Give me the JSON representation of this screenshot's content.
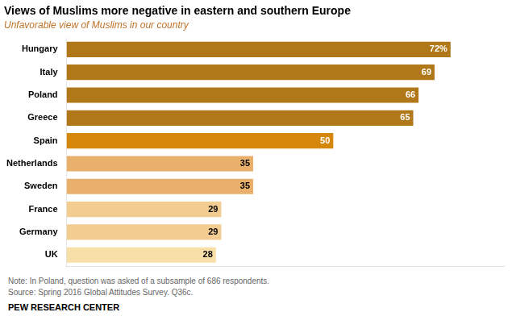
{
  "chart_data": {
    "type": "bar",
    "orientation": "horizontal",
    "title": "Views of Muslims more negative in eastern and southern Europe",
    "subtitle": "Unfavorable view of Muslims in our country",
    "categories": [
      "Hungary",
      "Italy",
      "Poland",
      "Greece",
      "Spain",
      "Netherlands",
      "Sweden",
      "France",
      "Germany",
      "UK"
    ],
    "values": [
      72,
      69,
      66,
      65,
      50,
      35,
      35,
      29,
      29,
      28
    ],
    "value_labels": [
      "72%",
      "69",
      "66",
      "65",
      "50",
      "35",
      "35",
      "29",
      "29",
      "28"
    ],
    "colors": [
      "#b07818",
      "#b07818",
      "#b07818",
      "#b07818",
      "#d4870a",
      "#e8b06a",
      "#e8b06a",
      "#f2cc90",
      "#f2cc90",
      "#f8dfa8"
    ],
    "xlim": [
      0,
      82
    ],
    "data_labels": true,
    "tick_labels": "y",
    "grid": false,
    "annotations": [
      "Note: In Poland, question was asked of a subsample of 686 respondents.",
      "Source: Spring 2016 Global Attitudes Survey. Q36c.",
      "PEW RESEARCH CENTER"
    ]
  }
}
